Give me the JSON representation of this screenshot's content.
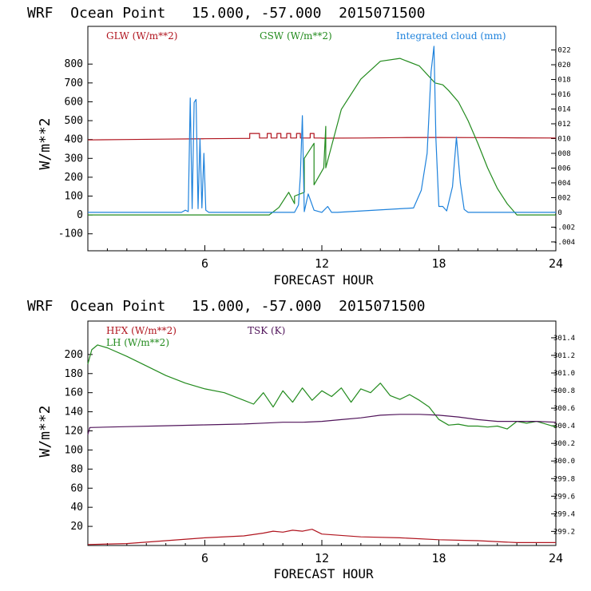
{
  "colors": {
    "background": "#ffffff",
    "axis": "#000000",
    "red": "#b0141e",
    "green": "#238b1e",
    "blue": "#1e82dc",
    "purple": "#50145a"
  },
  "chart_data": [
    {
      "type": "line",
      "header": "WRF  Ocean Point   15.000, -57.000  2015071500",
      "xlabel": "FORECAST HOUR",
      "ylabel": "W/m**2",
      "xlim": [
        0,
        24
      ],
      "ylim": [
        -190,
        1000
      ],
      "yticks": [
        -100,
        0,
        100,
        200,
        300,
        400,
        500,
        600,
        700,
        800
      ],
      "xticks": [
        6,
        12,
        18,
        24
      ],
      "y2lim": [
        -0.0052,
        0.0252
      ],
      "y2ticks": [
        -0.004,
        -0.002,
        0.0,
        0.002,
        0.004,
        0.006,
        0.008,
        0.01,
        0.012,
        0.014,
        0.016,
        0.018,
        0.02,
        0.022
      ],
      "y2ticklabels": [
        "-.004",
        "-.002",
        ".0",
        ".002",
        ".004",
        ".006",
        ".008",
        ".010",
        ".012",
        ".014",
        ".016",
        ".018",
        ".020",
        ".022"
      ],
      "legend": [
        "GLW (W/m**2)",
        "GSW (W/m**2)",
        "Integrated cloud (mm)"
      ],
      "series": [
        {
          "name": "GLW (W/m**2)",
          "axis": "left",
          "color": "red",
          "x": [
            0,
            2,
            4,
            6,
            8,
            8.3,
            8.3,
            8.8,
            8.8,
            9.2,
            9.2,
            9.4,
            9.4,
            9.7,
            9.7,
            9.9,
            9.9,
            10.2,
            10.2,
            10.4,
            10.4,
            10.7,
            10.7,
            10.9,
            10.9,
            11.4,
            11.4,
            11.6,
            11.6,
            12,
            12,
            14,
            16,
            18,
            20,
            22,
            24
          ],
          "y": [
            398,
            400,
            402,
            404,
            406,
            406,
            432,
            432,
            408,
            408,
            432,
            432,
            408,
            408,
            432,
            432,
            408,
            408,
            432,
            432,
            408,
            408,
            432,
            432,
            408,
            408,
            432,
            432,
            408,
            408,
            407,
            408,
            410,
            411,
            410,
            409,
            408
          ]
        },
        {
          "name": "GSW (W/m**2)",
          "axis": "left",
          "color": "green",
          "x": [
            0,
            9.3,
            9.8,
            10.3,
            10.6,
            10.6,
            11.1,
            11.1,
            11.6,
            11.6,
            12.1,
            12.2,
            12.2,
            13,
            14,
            15,
            16,
            17,
            17.8,
            18.2,
            18.5,
            19,
            19.5,
            20,
            20.5,
            21,
            21.5,
            22,
            24
          ],
          "y": [
            0,
            0,
            40,
            120,
            60,
            100,
            120,
            300,
            380,
            160,
            250,
            470,
            250,
            560,
            720,
            815,
            830,
            790,
            700,
            690,
            660,
            600,
            500,
            380,
            250,
            140,
            60,
            0,
            0
          ]
        },
        {
          "name": "Integrated cloud (mm)",
          "axis": "right",
          "color": "blue",
          "x": [
            0,
            4.8,
            5.0,
            5.15,
            5.25,
            5.35,
            5.45,
            5.55,
            5.65,
            5.75,
            5.85,
            5.95,
            6.05,
            6.2,
            10.6,
            10.8,
            10.9,
            11.0,
            11.1,
            11.3,
            11.6,
            12.0,
            12.3,
            12.5,
            12.8,
            16.7,
            17.1,
            17.4,
            17.6,
            17.75,
            17.85,
            18.0,
            18.2,
            18.4,
            18.7,
            18.9,
            19.1,
            19.3,
            19.5,
            20,
            24
          ],
          "y": [
            0,
            0,
            0.0003,
            0.0001,
            0.0155,
            0.0005,
            0.0149,
            0.0153,
            0.0005,
            0.01,
            0.0006,
            0.008,
            0.0003,
            0,
            0,
            0.001,
            0.005,
            0.0131,
            0.0001,
            0.0025,
            0.0003,
            0,
            0.0008,
            0,
            0,
            0.0006,
            0.003,
            0.008,
            0.019,
            0.0225,
            0.01,
            0.0008,
            0.0008,
            0.0002,
            0.0035,
            0.0102,
            0.004,
            0.0004,
            0,
            0,
            0
          ]
        }
      ]
    },
    {
      "type": "line",
      "header": "WRF  Ocean Point   15.000, -57.000  2015071500",
      "xlabel": "FORECAST HOUR",
      "ylabel": "W/m**2",
      "xlim": [
        0,
        24
      ],
      "ylim": [
        0,
        235
      ],
      "yticks": [
        20,
        40,
        60,
        80,
        100,
        120,
        140,
        160,
        180,
        200
      ],
      "xticks": [
        6,
        12,
        18,
        24
      ],
      "y2lim": [
        299.04,
        301.59
      ],
      "y2ticks": [
        299.2,
        299.4,
        299.6,
        299.8,
        300.0,
        300.2,
        300.4,
        300.6,
        300.8,
        301.0,
        301.2,
        301.4
      ],
      "y2ticklabels": [
        "299.2",
        "299.4",
        "299.6",
        "299.8",
        "300.0",
        "300.2",
        "300.4",
        "300.6",
        "300.8",
        "301.0",
        "301.2",
        "301.4"
      ],
      "legend": [
        "HFX (W/m**2)",
        "LH (W/m**2)",
        "TSK (K)"
      ],
      "series": [
        {
          "name": "HFX (W/m**2)",
          "axis": "left",
          "color": "red",
          "x": [
            0,
            2,
            4,
            6,
            8,
            9,
            9.5,
            10,
            10.5,
            11,
            11.5,
            12,
            14,
            16,
            18,
            20,
            22,
            24
          ],
          "y": [
            1,
            2,
            5,
            8,
            10,
            13,
            15,
            14,
            16,
            15,
            17,
            12,
            9,
            8,
            6,
            5,
            3,
            3
          ]
        },
        {
          "name": "LH (W/m**2)",
          "axis": "left",
          "color": "green",
          "x": [
            0,
            0.2,
            0.5,
            1,
            2,
            3,
            4,
            5,
            6,
            7,
            8,
            8.5,
            9,
            9.5,
            10,
            10.5,
            11,
            11.5,
            12,
            12.5,
            13,
            13.5,
            14,
            14.5,
            15,
            15.5,
            16,
            16.5,
            17,
            17.5,
            18,
            18.5,
            19,
            19.5,
            20,
            20.5,
            21,
            21.5,
            22,
            22.5,
            23,
            23.5,
            24
          ],
          "y": [
            190,
            205,
            210,
            207,
            198,
            188,
            178,
            170,
            164,
            160,
            152,
            148,
            160,
            145,
            162,
            150,
            165,
            152,
            162,
            156,
            165,
            150,
            164,
            160,
            170,
            157,
            153,
            158,
            152,
            145,
            132,
            126,
            127,
            125,
            125,
            124,
            125,
            122,
            130,
            128,
            130,
            127,
            124
          ]
        },
        {
          "name": "TSK (K)",
          "axis": "right",
          "color": "purple",
          "x": [
            0,
            0.1,
            2,
            4,
            6,
            8,
            9,
            10,
            11,
            12,
            13,
            14,
            15,
            16,
            17,
            18,
            19,
            20,
            21,
            22,
            23,
            24
          ],
          "y": [
            300.3,
            300.38,
            300.39,
            300.4,
            300.41,
            300.42,
            300.43,
            300.44,
            300.44,
            300.45,
            300.47,
            300.49,
            300.52,
            300.53,
            300.53,
            300.52,
            300.5,
            300.47,
            300.45,
            300.45,
            300.45,
            300.44
          ]
        }
      ]
    }
  ]
}
